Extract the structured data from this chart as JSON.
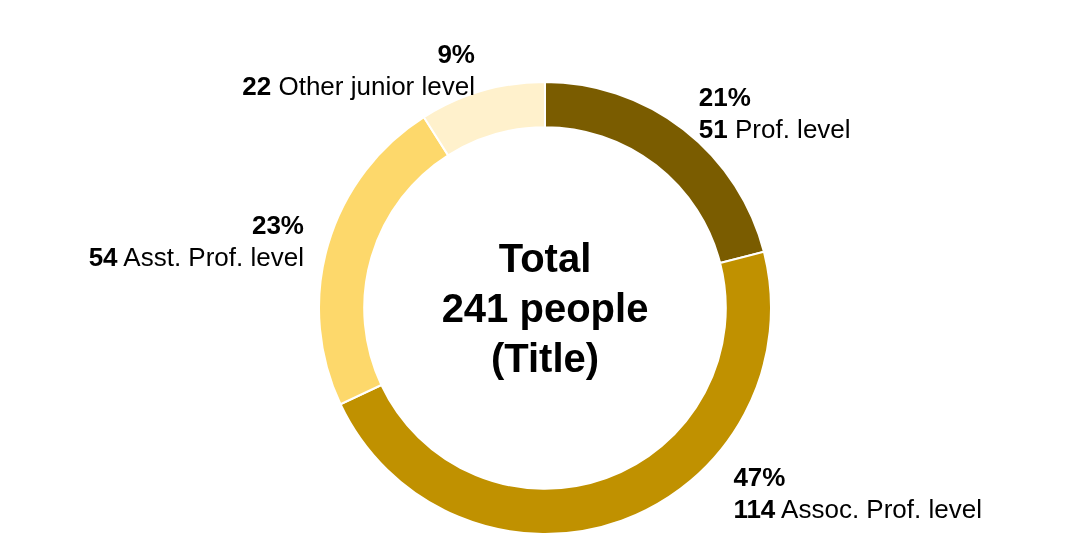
{
  "chart_data": {
    "type": "donut",
    "title": "Total\n241 people\n(Title)",
    "categories": [
      "51 Prof. level",
      "114 Assoc. Prof. level",
      "54 Asst. Prof. level",
      "22 Other junior level"
    ],
    "values": [
      21,
      47,
      23,
      9
    ],
    "value_labels": [
      "21%",
      "47%",
      "23%",
      "9%"
    ],
    "colors": [
      "#7a5c00",
      "#c09100",
      "#fdd86b",
      "#fff1cc"
    ],
    "legend": false
  }
}
